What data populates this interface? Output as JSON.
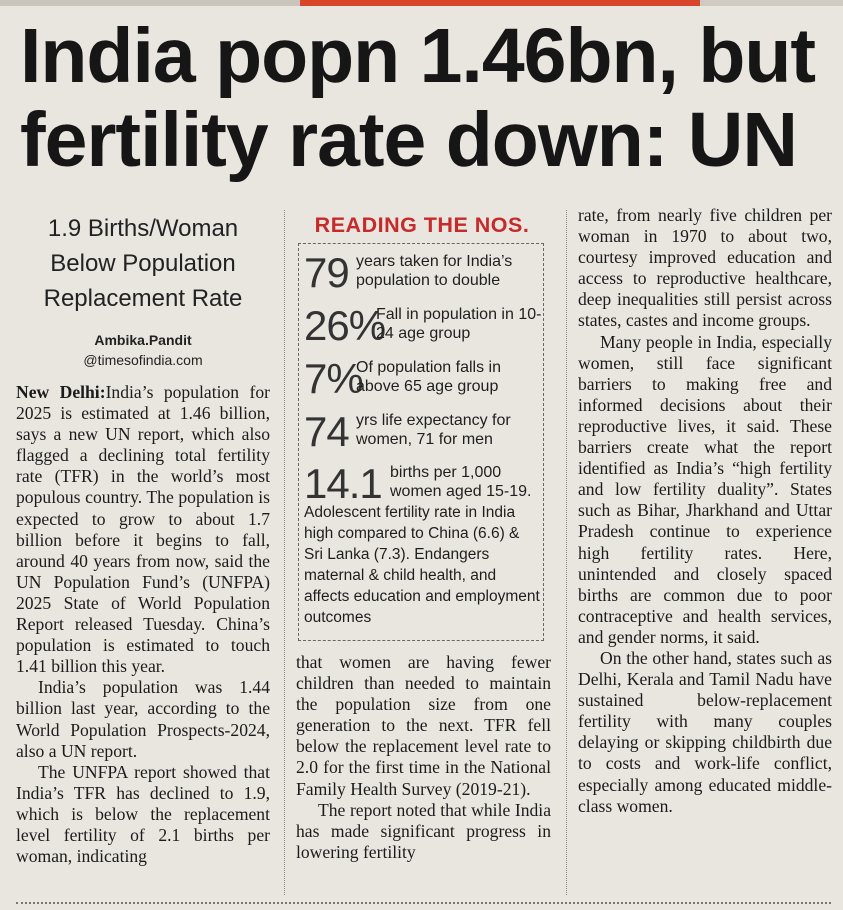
{
  "headline": {
    "line1": "India popn 1.46bn, but",
    "line2": "fertility rate down: UN"
  },
  "deck": {
    "line1": "1.9 Births/Woman",
    "line2": "Below Population",
    "line3": "Replacement Rate"
  },
  "byline": {
    "author": "Ambika.Pandit",
    "handle": "@timesofindia.com"
  },
  "column1": {
    "dateline": "New Delhi:",
    "p1": "India’s population for 2025 is estimated at 1.46 billion, says a new UN report, which also flagged a declining total fertility rate (TFR) in the world’s most populous country. The population is expected to grow to about 1.7 billion before it begins to fall, around 40 years from now, said the UN Population Fund’s (UNFPA) 2025 State of World Population Report released Tuesday. China’s population is estimated to touch 1.41 billion this year.",
    "p2": "India’s population was 1.44 billion last year, according to the World Population Prospects-2024, also a UN report.",
    "p3": "The UNFPA report showed that India’s TFR has declined to 1.9, which is below the replacement level fertility of 2.1 births per woman, indicating"
  },
  "factbox": {
    "title": "READING THE NOS.",
    "stats": [
      {
        "num": "79",
        "text": "years taken for India’s population to double"
      },
      {
        "num": "26%",
        "text": "Fall in population in 10-24 age group"
      },
      {
        "num": "7%",
        "text": "Of population falls in above 65 age group"
      },
      {
        "num": "74",
        "text": "yrs life expectancy for women, 71 for men"
      },
      {
        "num": "14.1",
        "text": "births per 1,000 women aged 15-19."
      }
    ],
    "footnote": "Adolescent fertility rate in India high compared to China (6.6) & Sri Lanka (7.3). Endangers maternal & child health, and affects education and employment outcomes"
  },
  "column2": {
    "p1": "that women are having fewer children than needed to maintain the population size from one generation to the next. TFR fell below the replacement level rate to 2.0 for the first time in the National Family Health Survey (2019-21).",
    "p2": "The report noted that while India has made significant progress in lowering fertility"
  },
  "column3": {
    "p1": "rate, from nearly five children per woman in 1970 to about two, courtesy improved education and access to reproductive healthcare, deep inequalities still persist across states, castes and income groups.",
    "p2": "Many people in India, especially women, still face significant barriers to making free and informed decisions about their reproductive lives, it said. These barriers create what the report identified as India’s “high fertility and low fertility duality”. States such as Bihar, Jharkhand and Uttar Pradesh continue to experience high fertility rates. Here, unintended and closely spaced births are common due to poor contraceptive and health services, and gender norms, it said.",
    "p3": "On the other hand, states such as Delhi, Kerala and Tamil Nadu have sustained below-replacement fertility with many couples delaying or skipping childbirth due to costs and work-life conflict, especially among educated middle-class women."
  },
  "colors": {
    "paper": "#e9e6df",
    "ink": "#1a1a1a",
    "accent_red": "#c62a2a"
  }
}
